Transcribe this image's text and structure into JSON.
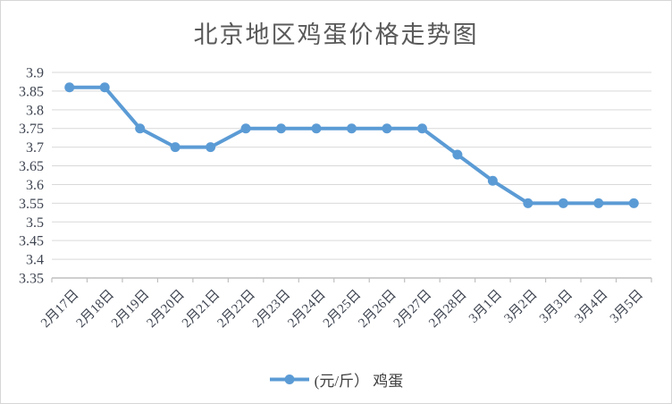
{
  "chart_data": {
    "type": "line",
    "title": "北京地区鸡蛋价格走势图",
    "categories": [
      "2月17日",
      "2月18日",
      "2月19日",
      "2月20日",
      "2月21日",
      "2月22日",
      "2月23日",
      "2月24日",
      "2月25日",
      "2月26日",
      "2月27日",
      "2月28日",
      "3月1日",
      "3月2日",
      "3月3日",
      "3月4日",
      "3月5日"
    ],
    "series": [
      {
        "name": "(元/斤） 鸡蛋",
        "values": [
          3.86,
          3.86,
          3.75,
          3.7,
          3.7,
          3.75,
          3.75,
          3.75,
          3.75,
          3.75,
          3.75,
          3.68,
          3.61,
          3.55,
          3.55,
          3.55,
          3.55
        ],
        "color": "#5B9BD5"
      }
    ],
    "ylim": [
      3.35,
      3.9
    ],
    "yticks": [
      3.35,
      3.4,
      3.45,
      3.5,
      3.55,
      3.6,
      3.65,
      3.7,
      3.75,
      3.8,
      3.85,
      3.9
    ],
    "grid": true,
    "legend_position": "bottom",
    "marker": "circle"
  },
  "styles": {
    "line_color": "#5B9BD5",
    "grid_color": "#D9D9D9",
    "axis_color": "#BFBFBF",
    "title_color": "#595959",
    "label_color": "#3E4450",
    "legend_text_color": "#404040",
    "background": "#FFFFFF"
  }
}
